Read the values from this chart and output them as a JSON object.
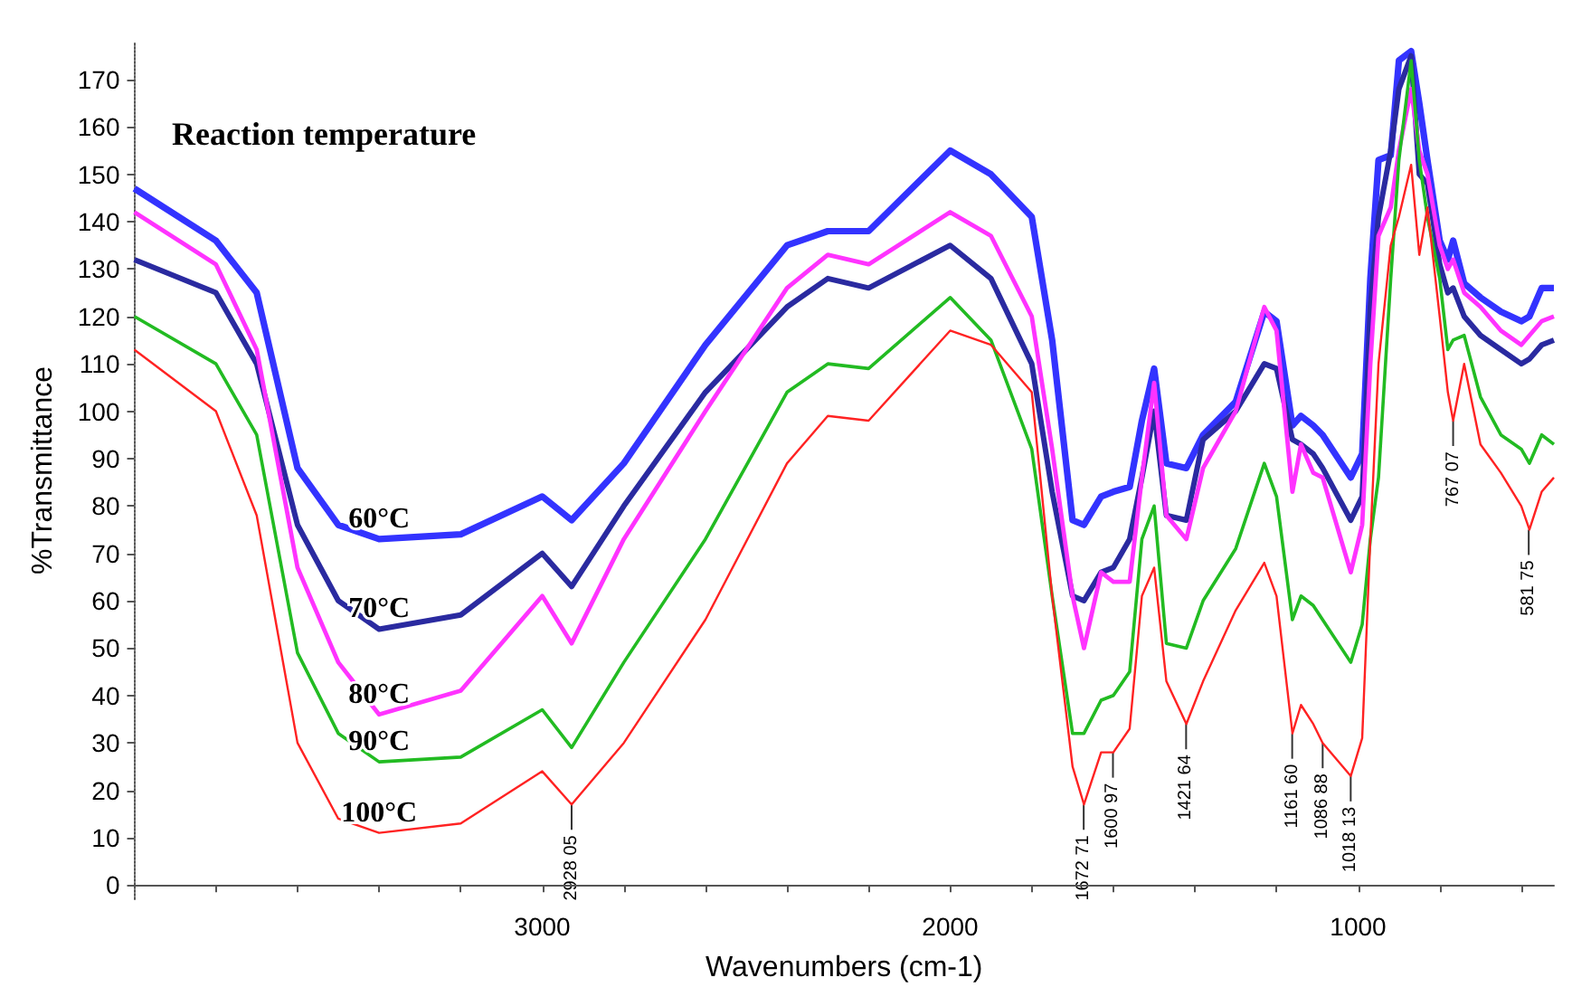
{
  "chart_data": {
    "type": "line",
    "title": "Reaction temperature",
    "xlabel": "Wavenumbers (cm-1)",
    "ylabel": "%Transmittance",
    "x": [
      4000,
      3800,
      3700,
      3600,
      3500,
      3400,
      3200,
      3000,
      2928,
      2800,
      2600,
      2400,
      2300,
      2200,
      2000,
      1900,
      1800,
      1750,
      1700,
      1672,
      1630,
      1600,
      1560,
      1530,
      1500,
      1470,
      1421,
      1380,
      1300,
      1230,
      1200,
      1161,
      1140,
      1110,
      1087,
      1018,
      990,
      970,
      950,
      920,
      900,
      870,
      850,
      830,
      800,
      780,
      767,
      740,
      700,
      650,
      600,
      580,
      550,
      520
    ],
    "series": [
      {
        "name": "60°C",
        "color": "#3333ff",
        "values": [
          147,
          136,
          125,
          88,
          76,
          73,
          74,
          82,
          77,
          89,
          114,
          135,
          138,
          138,
          155,
          150,
          141,
          115,
          77,
          76,
          82,
          83,
          84,
          98,
          109,
          89,
          88,
          95,
          102,
          121,
          119,
          97,
          99,
          97,
          95,
          86,
          91,
          128,
          153,
          154,
          174,
          176,
          165,
          153,
          136,
          132,
          136,
          127,
          124,
          121,
          119,
          120,
          126,
          126
        ]
      },
      {
        "name": "70°C",
        "color": "#2a2aa0",
        "values": [
          132,
          125,
          110,
          76,
          60,
          54,
          57,
          70,
          63,
          80,
          104,
          122,
          128,
          126,
          135,
          128,
          110,
          83,
          61,
          60,
          66,
          67,
          73,
          86,
          100,
          78,
          77,
          94,
          100,
          110,
          109,
          94,
          93,
          91,
          88,
          77,
          82,
          122,
          141,
          155,
          168,
          175,
          150,
          148,
          131,
          125,
          126,
          120,
          116,
          113,
          110,
          111,
          114,
          115
        ]
      },
      {
        "name": "80°C",
        "color": "#ff33ff",
        "values": [
          142,
          131,
          113,
          67,
          47,
          36,
          41,
          61,
          51,
          73,
          100,
          126,
          133,
          131,
          142,
          137,
          120,
          92,
          61,
          50,
          66,
          64,
          64,
          86,
          106,
          78,
          73,
          88,
          100,
          122,
          117,
          83,
          93,
          87,
          86,
          66,
          76,
          110,
          137,
          143,
          155,
          168,
          155,
          150,
          135,
          130,
          132,
          125,
          122,
          117,
          114,
          116,
          119,
          120
        ]
      },
      {
        "name": "90°C",
        "color": "#22bb22",
        "values": [
          120,
          110,
          95,
          49,
          32,
          26,
          27,
          37,
          29,
          47,
          73,
          104,
          110,
          109,
          124,
          115,
          92,
          61,
          32,
          32,
          39,
          40,
          45,
          73,
          80,
          51,
          50,
          60,
          71,
          89,
          82,
          56,
          61,
          59,
          56,
          47,
          55,
          73,
          86,
          128,
          153,
          174,
          153,
          141,
          128,
          113,
          115,
          116,
          103,
          95,
          92,
          89,
          95,
          93
        ]
      },
      {
        "name": "100°C",
        "color": "#ff2222",
        "values": [
          113,
          100,
          78,
          30,
          14,
          11,
          13,
          24,
          17,
          30,
          56,
          89,
          99,
          98,
          117,
          114,
          104,
          61,
          25,
          17,
          28,
          28,
          33,
          61,
          67,
          43,
          34,
          43,
          58,
          68,
          61,
          32,
          38,
          34,
          30,
          23,
          31,
          73,
          110,
          135,
          141,
          152,
          133,
          143,
          120,
          104,
          98,
          110,
          93,
          87,
          80,
          75,
          83,
          86
        ]
      }
    ],
    "xlim": [
      4000,
      520
    ],
    "xticks": [
      {
        "value": 3800,
        "label": null
      },
      {
        "value": 3600,
        "label": null
      },
      {
        "value": 3400,
        "label": null
      },
      {
        "value": 3200,
        "label": null
      },
      3000,
      {
        "value": 2800,
        "label": null
      },
      {
        "value": 2600,
        "label": null
      },
      {
        "value": 2400,
        "label": null
      },
      {
        "value": 2200,
        "label": null
      },
      2000,
      {
        "value": 1800,
        "label": null
      },
      {
        "value": 1600,
        "label": null
      },
      {
        "value": 1400,
        "label": null
      },
      {
        "value": 1200,
        "label": null
      },
      1000,
      {
        "value": 800,
        "label": null
      },
      {
        "value": 600,
        "label": null
      }
    ],
    "ylim": [
      -3,
      178
    ],
    "yticks": [
      0,
      10,
      20,
      30,
      40,
      50,
      60,
      70,
      80,
      90,
      100,
      110,
      120,
      130,
      140,
      150,
      160,
      170
    ],
    "grid": false,
    "legend": false,
    "annotations": [
      {
        "text": "2928 05",
        "x": 2928.05,
        "y": 17
      },
      {
        "text": "1672 71",
        "x": 1672.71,
        "y": 17
      },
      {
        "text": "1600 97",
        "x": 1600.97,
        "y": 28
      },
      {
        "text": "1421 64",
        "x": 1421.64,
        "y": 34
      },
      {
        "text": "1161 60",
        "x": 1161.6,
        "y": 32
      },
      {
        "text": "1086 88",
        "x": 1086.88,
        "y": 30
      },
      {
        "text": "1018 13",
        "x": 1018.13,
        "y": 23
      },
      {
        "text": "767 07",
        "x": 767.07,
        "y": 98
      },
      {
        "text": "581 75",
        "x": 581.75,
        "y": 75
      }
    ]
  }
}
